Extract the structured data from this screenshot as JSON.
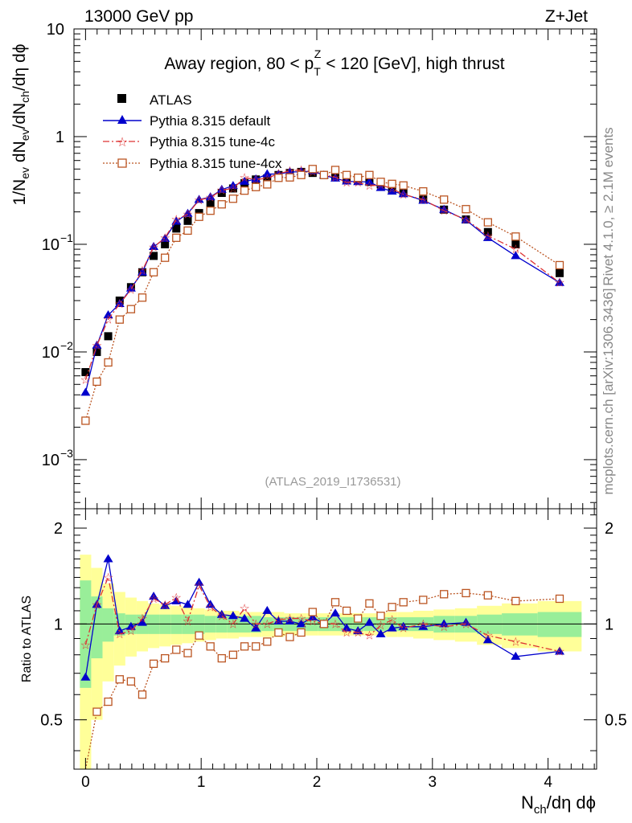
{
  "header": {
    "left": "13000 GeV pp",
    "right": "Z+Jet"
  },
  "side_labels": {
    "rivet": "Rivet 4.1.0, ≥ 2.1M events",
    "url": "mcplots.cern.ch [arXiv:1306.3436]"
  },
  "chart_data": {
    "type": "scatter",
    "title": "Away region, 80 < p_T^Z < 120 [GeV], high thrust",
    "title_parts": {
      "pre": "Away region, 80 < p",
      "sub": "T",
      "sup": "Z",
      "post": " < 120 [GeV], high thrust"
    },
    "analysis_id": "(ATLAS_2019_I1736531)",
    "xlabel": "N_ch/dη dϕ",
    "ylabel": "1/N_ev dN_ev/dN_ch/dη dϕ",
    "ratio_ylabel": "Ratio to ATLAS",
    "xlim": [
      -0.1,
      4.42
    ],
    "ylim": [
      0.00035,
      10
    ],
    "yscale": "log",
    "ratio_ylim": [
      0.35,
      2.3
    ],
    "x_ticks": [
      "0",
      "1",
      "2",
      "3",
      "4"
    ],
    "y_ticks": [
      "10",
      "1",
      "10^-1",
      "10^-2",
      "10^-3"
    ],
    "ratio_ticks": [
      "2",
      "1",
      "0.5"
    ],
    "legend_position": "top-left",
    "x": [
      0.0,
      0.098,
      0.196,
      0.295,
      0.393,
      0.491,
      0.589,
      0.687,
      0.785,
      0.884,
      0.982,
      1.08,
      1.178,
      1.276,
      1.375,
      1.473,
      1.571,
      1.669,
      1.767,
      1.865,
      1.964,
      2.062,
      2.16,
      2.258,
      2.356,
      2.455,
      2.553,
      2.651,
      2.749,
      2.92,
      3.1,
      3.29,
      3.48,
      3.72,
      4.1
    ],
    "series": [
      {
        "name": "ATLAS",
        "color": "#000000",
        "marker": "square",
        "values": [
          0.0065,
          0.01,
          0.014,
          0.03,
          0.04,
          0.055,
          0.078,
          0.1,
          0.14,
          0.165,
          0.195,
          0.24,
          0.3,
          0.33,
          0.37,
          0.4,
          0.41,
          0.44,
          0.46,
          0.47,
          0.46,
          0.44,
          0.42,
          0.4,
          0.4,
          0.38,
          0.36,
          0.32,
          0.3,
          0.26,
          0.21,
          0.17,
          0.13,
          0.1,
          0.054
        ]
      },
      {
        "name": "Pythia 8.315 default",
        "color": "#0000cc",
        "marker": "triangle",
        "values": [
          0.0042,
          0.0115,
          0.022,
          0.028,
          0.039,
          0.055,
          0.095,
          0.113,
          0.163,
          0.193,
          0.26,
          0.275,
          0.322,
          0.35,
          0.383,
          0.403,
          0.45,
          0.448,
          0.47,
          0.47,
          0.48,
          0.437,
          0.41,
          0.385,
          0.38,
          0.38,
          0.335,
          0.31,
          0.293,
          0.255,
          0.21,
          0.168,
          0.115,
          0.078,
          0.044
        ]
      },
      {
        "name": "Pythia 8.315 tune-4c",
        "color": "#dd3333",
        "marker": "star",
        "values": [
          0.0055,
          0.0115,
          0.02,
          0.028,
          0.038,
          0.057,
          0.094,
          0.115,
          0.17,
          0.19,
          0.258,
          0.272,
          0.318,
          0.33,
          0.415,
          0.4,
          0.41,
          0.454,
          0.48,
          0.49,
          0.47,
          0.44,
          0.42,
          0.375,
          0.375,
          0.35,
          0.355,
          0.33,
          0.29,
          0.26,
          0.205,
          0.17,
          0.12,
          0.09,
          0.044
        ]
      },
      {
        "name": "Pythia 8.315 tune-4cx",
        "color": "#bb5522",
        "marker": "open-square",
        "values": [
          0.0023,
          0.0053,
          0.008,
          0.02,
          0.025,
          0.032,
          0.055,
          0.075,
          0.115,
          0.134,
          0.18,
          0.205,
          0.235,
          0.265,
          0.315,
          0.34,
          0.36,
          0.414,
          0.418,
          0.44,
          0.5,
          0.44,
          0.49,
          0.44,
          0.415,
          0.44,
          0.38,
          0.364,
          0.352,
          0.31,
          0.26,
          0.212,
          0.16,
          0.118,
          0.064
        ]
      }
    ],
    "ratio": {
      "reference_band_inner": [
        0.63,
        0.78,
        0.88,
        0.92,
        0.93,
        0.93,
        0.93,
        0.93,
        0.93,
        0.93,
        0.93,
        0.94,
        0.94,
        0.94,
        0.94,
        0.94,
        0.95,
        0.95,
        0.95,
        0.95,
        0.95,
        0.95,
        0.95,
        0.95,
        0.95,
        0.95,
        0.95,
        0.95,
        0.95,
        0.95,
        0.94,
        0.94,
        0.93,
        0.92,
        0.91
      ],
      "reference_band_outer": [
        0.35,
        0.5,
        0.66,
        0.74,
        0.79,
        0.82,
        0.84,
        0.85,
        0.86,
        0.87,
        0.88,
        0.89,
        0.9,
        0.9,
        0.91,
        0.91,
        0.91,
        0.91,
        0.92,
        0.92,
        0.92,
        0.92,
        0.92,
        0.92,
        0.92,
        0.92,
        0.92,
        0.91,
        0.91,
        0.9,
        0.89,
        0.88,
        0.86,
        0.84,
        0.82
      ],
      "default": [
        0.68,
        1.15,
        1.6,
        0.95,
        0.98,
        1.01,
        1.22,
        1.14,
        1.18,
        1.15,
        1.35,
        1.15,
        1.07,
        1.06,
        1.04,
        0.97,
        1.1,
        1.02,
        1.02,
        1.0,
        1.05,
        1.0,
        1.08,
        0.97,
        0.95,
        1.01,
        0.93,
        0.97,
        0.98,
        0.98,
        1.0,
        1.01,
        0.89,
        0.79,
        0.82
      ],
      "tune4c": [
        0.86,
        1.15,
        1.4,
        0.93,
        0.95,
        1.04,
        1.2,
        1.15,
        1.21,
        1.02,
        1.32,
        1.13,
        1.06,
        1.0,
        1.12,
        1.0,
        1.0,
        1.03,
        1.04,
        1.04,
        1.02,
        1.0,
        1.0,
        0.94,
        0.94,
        0.92,
        0.99,
        1.03,
        0.97,
        1.0,
        0.98,
        1.0,
        0.92,
        0.88,
        0.82
      ],
      "tune4cx": [
        0.35,
        0.53,
        0.57,
        0.67,
        0.66,
        0.6,
        0.75,
        0.78,
        0.83,
        0.81,
        0.92,
        0.85,
        0.78,
        0.8,
        0.85,
        0.85,
        0.88,
        0.94,
        0.91,
        0.94,
        1.09,
        1.0,
        1.17,
        1.1,
        1.04,
        1.16,
        1.06,
        1.13,
        1.17,
        1.19,
        1.24,
        1.25,
        1.23,
        1.18,
        1.2
      ]
    }
  }
}
